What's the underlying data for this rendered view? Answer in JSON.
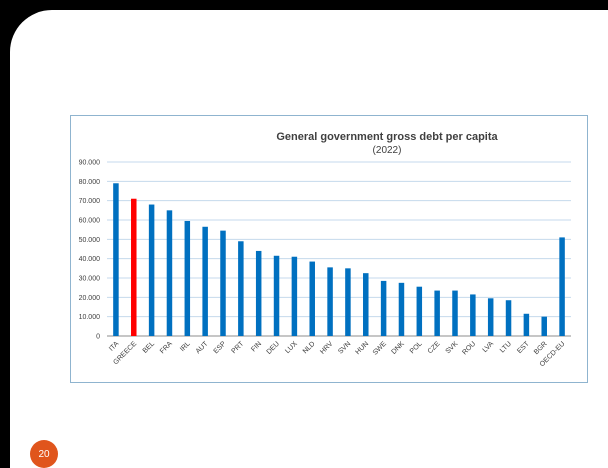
{
  "slide": {
    "page_number": "20"
  },
  "chart_data": {
    "type": "bar",
    "title": "General government gross debt per capita",
    "subtitle": "(2022)",
    "categories": [
      "ITA",
      "GREECE",
      "BEL",
      "FRA",
      "IRL",
      "AUT",
      "ESP",
      "PRT",
      "FIN",
      "DEU",
      "LUX",
      "NLD",
      "HRV",
      "SVN",
      "HUN",
      "SWE",
      "DNK",
      "POL",
      "CZE",
      "SVK",
      "ROU",
      "LVA",
      "LTU",
      "EST",
      "BGR",
      "OECD-EU"
    ],
    "values": [
      79000,
      71000,
      68000,
      65000,
      59500,
      56500,
      54500,
      49000,
      44000,
      41500,
      41000,
      38500,
      35500,
      35000,
      32500,
      28500,
      27500,
      25500,
      23500,
      23500,
      21500,
      19500,
      18500,
      11500,
      10000,
      51000
    ],
    "highlight": {
      "category": "GREECE",
      "color": "#ff0000"
    },
    "bar_color": "#0070c0",
    "ylim": [
      0,
      90000
    ],
    "yticks": [
      "0",
      "10.000",
      "20.000",
      "30.000",
      "40.000",
      "50.000",
      "60.000",
      "70.000",
      "80.000",
      "90.000"
    ],
    "grid": true,
    "xlabel": "",
    "ylabel": ""
  }
}
